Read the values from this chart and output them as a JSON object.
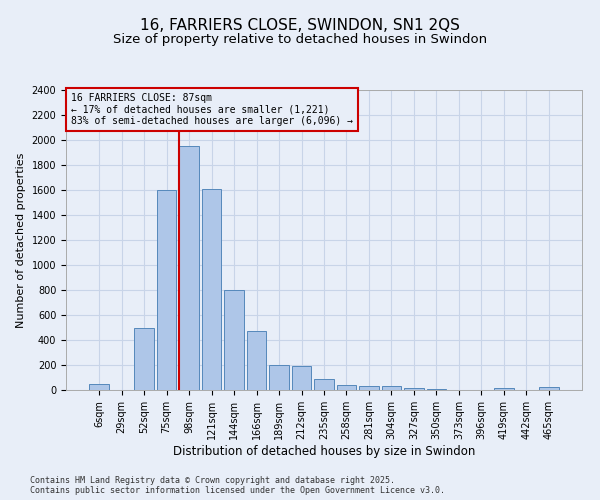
{
  "title": "16, FARRIERS CLOSE, SWINDON, SN1 2QS",
  "subtitle": "Size of property relative to detached houses in Swindon",
  "xlabel": "Distribution of detached houses by size in Swindon",
  "ylabel": "Number of detached properties",
  "footer": "Contains HM Land Registry data © Crown copyright and database right 2025.\nContains public sector information licensed under the Open Government Licence v3.0.",
  "bar_labels": [
    "6sqm",
    "29sqm",
    "52sqm",
    "75sqm",
    "98sqm",
    "121sqm",
    "144sqm",
    "166sqm",
    "189sqm",
    "212sqm",
    "235sqm",
    "258sqm",
    "281sqm",
    "304sqm",
    "327sqm",
    "350sqm",
    "373sqm",
    "396sqm",
    "419sqm",
    "442sqm",
    "465sqm"
  ],
  "bar_values": [
    50,
    0,
    500,
    1600,
    1950,
    1610,
    800,
    475,
    200,
    195,
    90,
    40,
    35,
    30,
    15,
    10,
    0,
    0,
    15,
    0,
    25
  ],
  "bar_color": "#aec6e8",
  "bar_edge_color": "#5588bb",
  "grid_color": "#c8d4e8",
  "background_color": "#e8eef8",
  "vline_x": 3.575,
  "vline_color": "#cc0000",
  "annotation_text": "16 FARRIERS CLOSE: 87sqm\n← 17% of detached houses are smaller (1,221)\n83% of semi-detached houses are larger (6,096) →",
  "annotation_box_color": "#cc0000",
  "ylim": [
    0,
    2400
  ],
  "yticks": [
    0,
    200,
    400,
    600,
    800,
    1000,
    1200,
    1400,
    1600,
    1800,
    2000,
    2200,
    2400
  ],
  "title_fontsize": 11,
  "subtitle_fontsize": 9.5,
  "xlabel_fontsize": 8.5,
  "ylabel_fontsize": 8,
  "tick_fontsize": 7,
  "annotation_fontsize": 7,
  "footer_fontsize": 6
}
